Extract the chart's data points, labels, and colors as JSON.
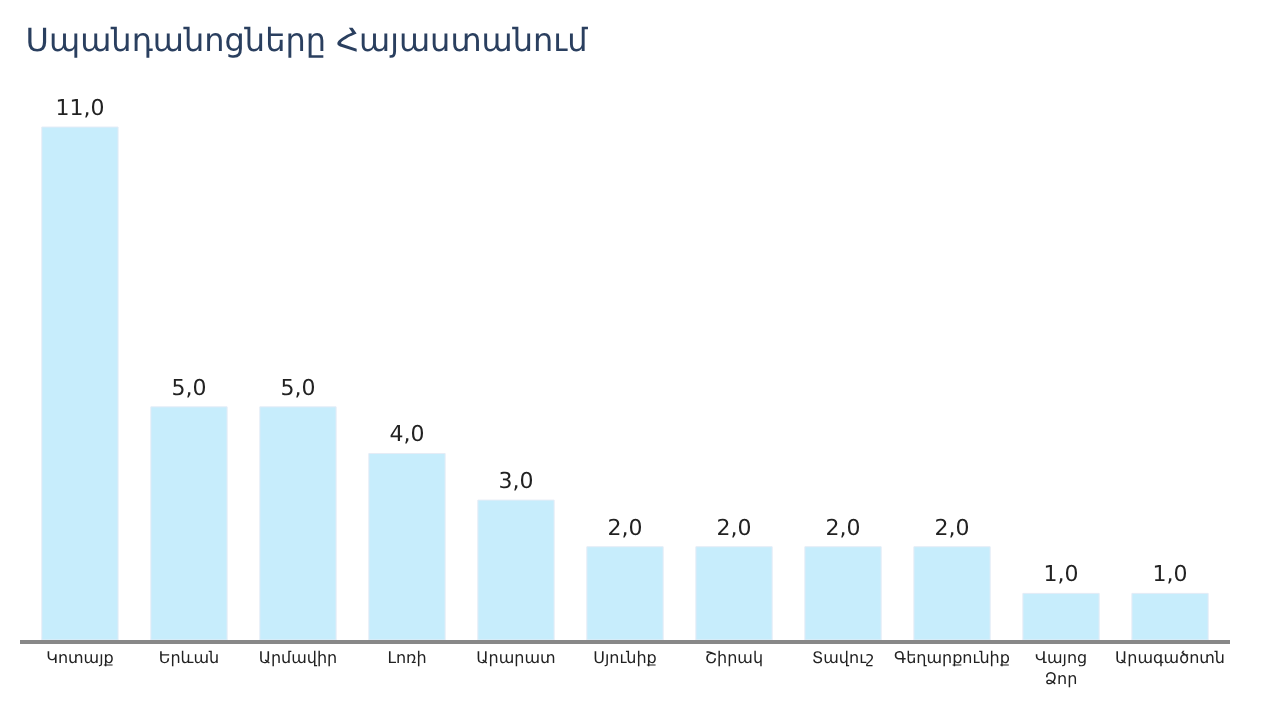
{
  "chart_data": {
    "type": "bar",
    "title": "Սպանդանոցները Հայաստանում",
    "categories": [
      "Կոտայք",
      "Երևան",
      "Արմավիր",
      "Լոռի",
      "Արարատ",
      "Սյունիք",
      "Շիրակ",
      "Տավուշ",
      "Գեղարքունիք",
      "Վայոց Ձոր",
      "Արագածոտն"
    ],
    "values": [
      11,
      5,
      5,
      4,
      3,
      2,
      2,
      2,
      2,
      1,
      1
    ],
    "value_labels": [
      "11,0",
      "5,0",
      "5,0",
      "4,0",
      "3,0",
      "2,0",
      "2,0",
      "2,0",
      "2,0",
      "1,0",
      "1,0"
    ],
    "color": "#c7edfc"
  }
}
